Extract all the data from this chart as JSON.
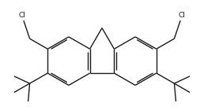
{
  "bg_color": "#ffffff",
  "line_color": "#1a1a1a",
  "text_color": "#1a1a1a",
  "line_width": 1.0,
  "figsize": [
    2.58,
    1.4
  ],
  "dpi": 100,
  "font_size": 6.5
}
